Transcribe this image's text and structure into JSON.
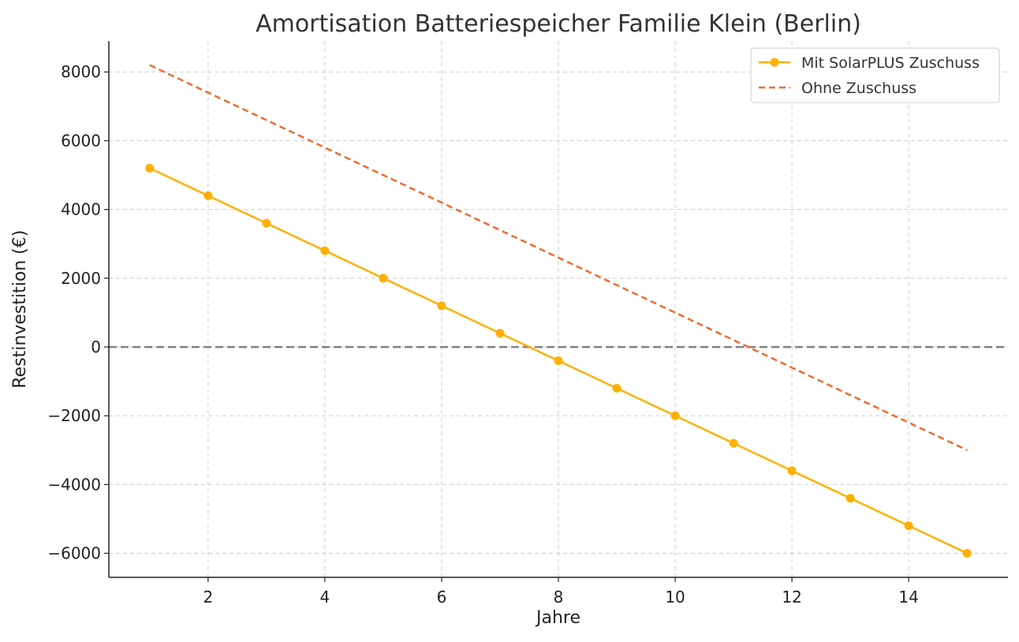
{
  "chart_data": {
    "type": "line",
    "title": "Amortisation Batteriespeicher Familie Klein (Berlin)",
    "xlabel": "Jahre",
    "ylabel": "Restinvestition (€)",
    "x": [
      1,
      2,
      3,
      4,
      5,
      6,
      7,
      8,
      9,
      10,
      11,
      12,
      13,
      14,
      15
    ],
    "series": [
      {
        "name": "Mit SolarPLUS Zuschuss",
        "values": [
          5200,
          4400,
          3600,
          2800,
          2000,
          1200,
          400,
          -400,
          -1200,
          -2000,
          -2800,
          -3600,
          -4400,
          -5200,
          -6000
        ],
        "color": "#FFB000",
        "style": "solid",
        "markers": true
      },
      {
        "name": "Ohne Zuschuss",
        "values": [
          8200,
          7400,
          6600,
          5800,
          5000,
          4200,
          3400,
          2600,
          1800,
          1000,
          200,
          -600,
          -1400,
          -2200,
          -3000
        ],
        "color": "#EE6A2E",
        "style": "dashed",
        "markers": false
      }
    ],
    "xlim": [
      0.3,
      15.7
    ],
    "ylim": [
      -6700,
      8900
    ],
    "xticks": [
      2,
      4,
      6,
      8,
      10,
      12,
      14
    ],
    "yticks": [
      -6000,
      -4000,
      -2000,
      0,
      2000,
      4000,
      6000,
      8000
    ],
    "xtick_labels": [
      "2",
      "4",
      "6",
      "8",
      "10",
      "12",
      "14"
    ],
    "ytick_labels": [
      "−6000",
      "−4000",
      "−2000",
      "0",
      "2000",
      "4000",
      "6000",
      "8000"
    ],
    "reference_line": {
      "y": 0,
      "color": "#808080",
      "style": "dashed"
    },
    "grid": true,
    "legend_position": "top-right"
  }
}
